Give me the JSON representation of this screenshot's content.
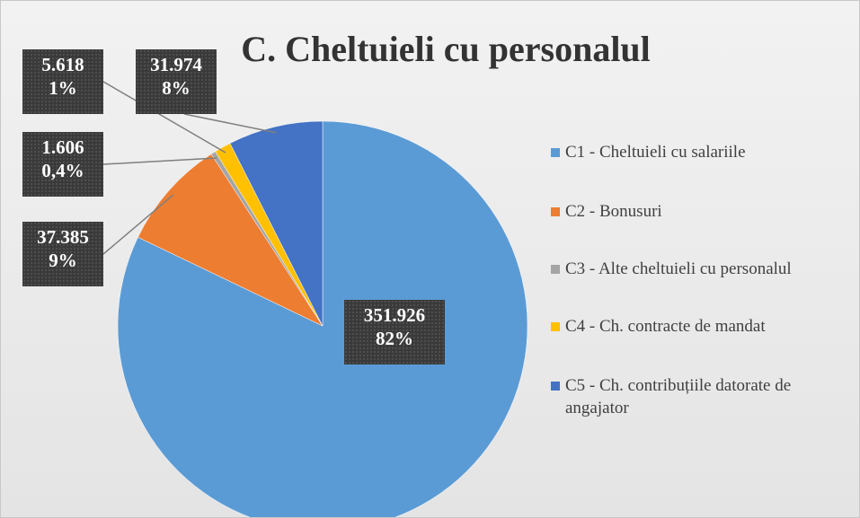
{
  "chart_data": {
    "type": "pie",
    "title": "C. Cheltuieli cu personalul",
    "categories": [
      "C1 - Cheltuieli  cu salariile",
      "C2 - Bonusuri",
      "C3 - Alte cheltuieli cu personalul",
      "C4 - Ch. contracte de mandat",
      "C5 - Ch. contribuțiile  datorate de angajator"
    ],
    "values": [
      351926,
      37385,
      1606,
      5618,
      31974
    ],
    "value_labels": [
      "351.926",
      "37.385",
      "1.606",
      "5.618",
      "31.974"
    ],
    "percent_labels": [
      "82%",
      "9%",
      "0,4%",
      "1%",
      "8%"
    ],
    "colors": [
      "#5b9bd5",
      "#ed7d31",
      "#a5a5a5",
      "#ffc000",
      "#4472c4"
    ],
    "legend": "right"
  }
}
